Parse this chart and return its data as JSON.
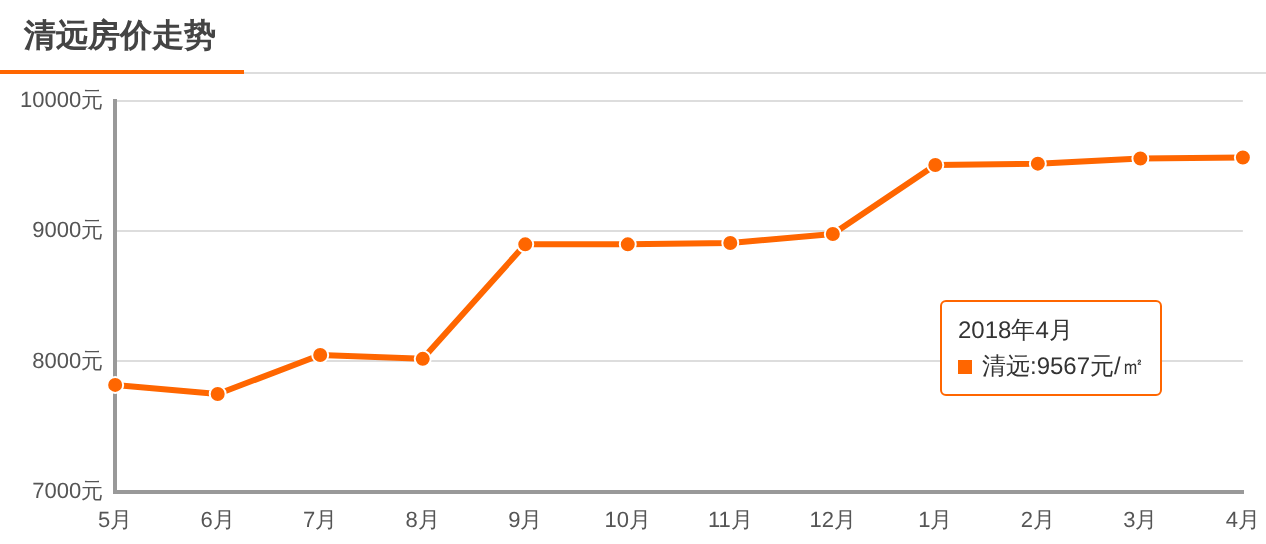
{
  "chart_data": {
    "type": "line",
    "title": "清远房价走势",
    "categories": [
      "5月",
      "6月",
      "7月",
      "8月",
      "9月",
      "10月",
      "11月",
      "12月",
      "1月",
      "2月",
      "3月",
      "4月"
    ],
    "series": [
      {
        "name": "清远",
        "color": "#ff6600",
        "values": [
          7820,
          7750,
          8050,
          8020,
          8900,
          8900,
          8910,
          8980,
          9510,
          9520,
          9560,
          9567
        ]
      }
    ],
    "ylim": [
      7000,
      10000
    ],
    "yticks": [
      {
        "value": 7000,
        "label": "7000元"
      },
      {
        "value": 8000,
        "label": "8000元"
      },
      {
        "value": 9000,
        "label": "9000元"
      },
      {
        "value": 10000,
        "label": "10000元"
      }
    ],
    "grid": "y",
    "legend": "right",
    "marker": "circle",
    "line_style": "solid",
    "annotations": [
      "2018年4月",
      ":9567元/㎡"
    ]
  }
}
